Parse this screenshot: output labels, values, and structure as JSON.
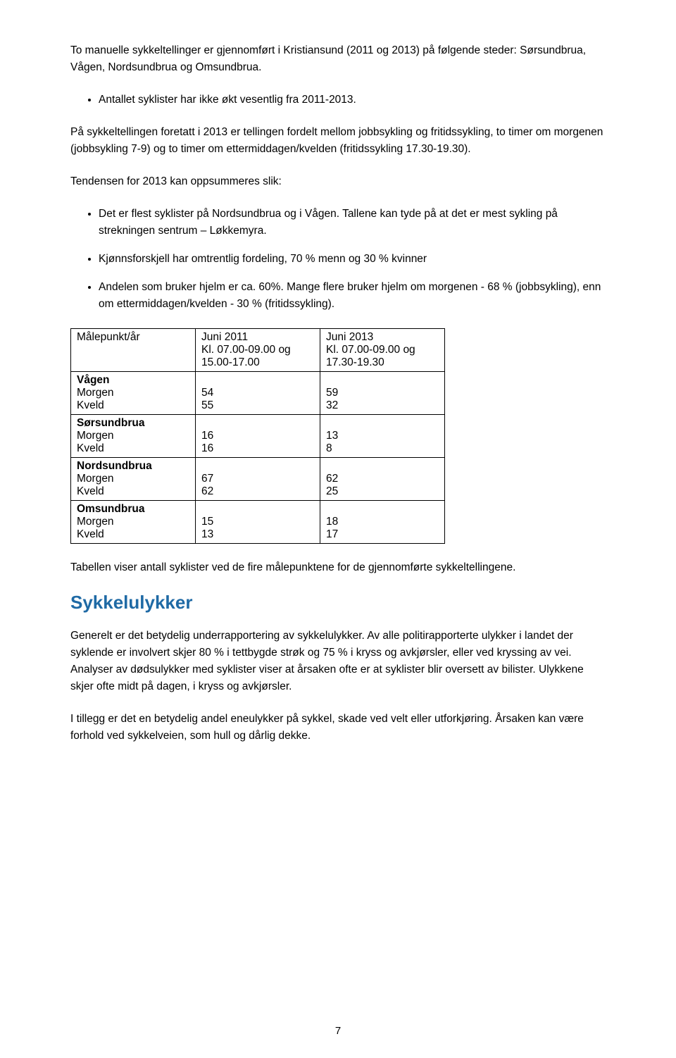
{
  "colors": {
    "text": "#000000",
    "background": "#ffffff",
    "table_border": "#000000",
    "heading": "#1f6aa5"
  },
  "para1": "To manuelle sykkeltellinger er gjennomført i Kristiansund (2011 og 2013) på følgende steder: Sørsundbrua, Vågen, Nordsundbrua og Omsundbrua.",
  "bullets1": [
    "Antallet syklister har ikke økt vesentlig fra 2011-2013."
  ],
  "para2": "På sykkeltellingen foretatt i 2013 er tellingen fordelt mellom jobbsykling og fritidssykling, to timer om morgenen (jobbsykling 7-9) og to timer om ettermiddagen/kvelden (fritidssykling 17.30-19.30).",
  "para3": "Tendensen for 2013 kan oppsummeres slik:",
  "bullets2": [
    "Det er flest syklister på Nordsundbrua og i Vågen. Tallene kan tyde på at det er mest sykling på strekningen sentrum – Løkkemyra.",
    "Kjønnsforskjell har omtrentlig fordeling, 70 % menn og 30 % kvinner",
    "Andelen som bruker hjelm er ca. 60%. Mange flere bruker hjelm om morgenen - 68 % (jobbsykling), enn om ettermiddagen/kvelden - 30 % (fritidssykling)."
  ],
  "table": {
    "header": {
      "c0": "Målepunkt/år",
      "c1": "Juni 2011\nKl. 07.00-09.00 og\n15.00-17.00",
      "c2": "Juni 2013\nKl. 07.00-09.00 og\n17.30-19.30"
    },
    "groups": [
      {
        "name": "Vågen",
        "rows": [
          {
            "label": "Morgen",
            "c1": "54",
            "c2": "59"
          },
          {
            "label": "Kveld",
            "c1": "55",
            "c2": "32"
          }
        ]
      },
      {
        "name": "Sørsundbrua",
        "rows": [
          {
            "label": "Morgen",
            "c1": "16",
            "c2": "13"
          },
          {
            "label": "Kveld",
            "c1": "16",
            "c2": "8"
          }
        ]
      },
      {
        "name": "Nordsundbrua",
        "rows": [
          {
            "label": "Morgen",
            "c1": "67",
            "c2": "62"
          },
          {
            "label": "Kveld",
            "c1": "62",
            "c2": "25"
          }
        ]
      },
      {
        "name": "Omsundbrua",
        "rows": [
          {
            "label": "Morgen",
            "c1": "15",
            "c2": "18"
          },
          {
            "label": "Kveld",
            "c1": "13",
            "c2": "17"
          }
        ]
      }
    ]
  },
  "para4": "Tabellen viser antall syklister ved de fire målepunktene for de gjennomførte sykkeltellingene.",
  "heading": "Sykkelulykker",
  "para5": "Generelt er det betydelig underrapportering av sykkelulykker. Av alle politirapporterte ulykker i landet der syklende er involvert skjer 80 % i tettbygde strøk og 75 % i kryss og avkjørsler, eller ved kryssing av vei. Analyser av dødsulykker med syklister viser at årsaken ofte er at syklister blir oversett av bilister. Ulykkene skjer ofte midt på dagen, i kryss og avkjørsler.",
  "para6": "I tillegg er det en betydelig andel eneulykker på sykkel, skade ved velt eller utforkjøring. Årsaken kan være forhold ved sykkelveien, som hull og dårlig dekke.",
  "page_number": "7"
}
